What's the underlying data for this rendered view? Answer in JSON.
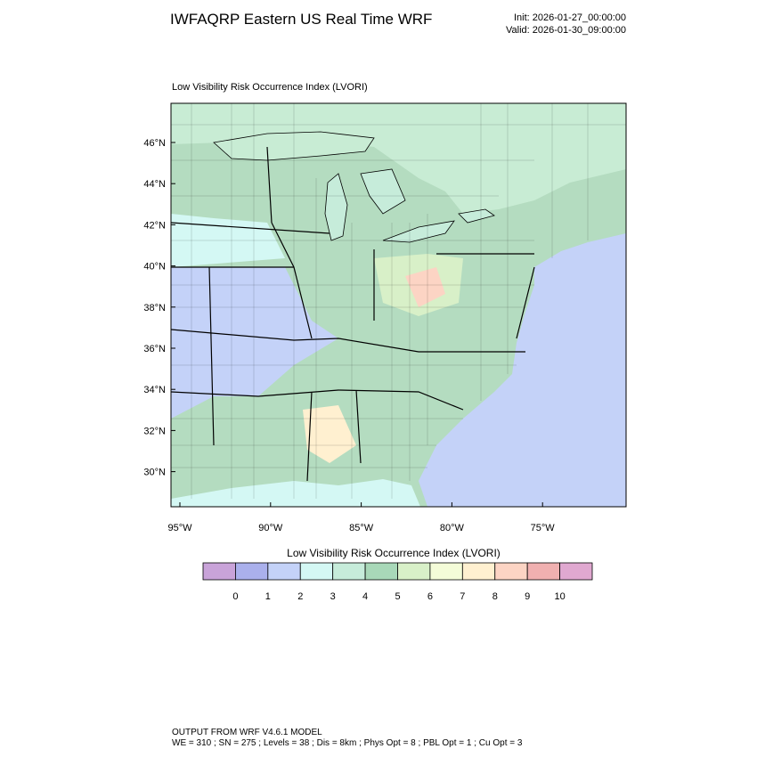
{
  "header": {
    "title": "IWFAQRP Eastern US Real Time WRF",
    "init": "Init: 2026-01-27_00:00:00",
    "valid": "Valid: 2026-01-30_09:00:00"
  },
  "map": {
    "title": "Low Visibility Risk Occurrence Index   (LVORI)",
    "lat_labels": [
      "46°N",
      "44°N",
      "42°N",
      "40°N",
      "38°N",
      "36°N",
      "34°N",
      "32°N",
      "30°N"
    ],
    "lon_labels": [
      "95°W",
      "90°W",
      "85°W",
      "80°W",
      "75°W"
    ]
  },
  "colorbar": {
    "title": "Low Visibility Risk Occurrence Index  (LVORI)",
    "colors": [
      "#c9a3d9",
      "#aab0ec",
      "#c4d2f8",
      "#d4f8f4",
      "#c6ecda",
      "#a8d8b8",
      "#d8f0c8",
      "#f4fcd8",
      "#fff0d0",
      "#fcd4c4",
      "#f0b0b0",
      "#e0a8d0"
    ],
    "labels": [
      "0",
      "1",
      "2",
      "3",
      "4",
      "5",
      "6",
      "7",
      "8",
      "9",
      "10"
    ]
  },
  "footer": {
    "line1": "OUTPUT FROM WRF V4.6.1 MODEL",
    "line2": "WE = 310 ; SN = 275 ; Levels = 38 ; Dis = 8km ; Phys Opt = 8 ; PBL Opt = 1 ; Cu Opt = 3"
  }
}
